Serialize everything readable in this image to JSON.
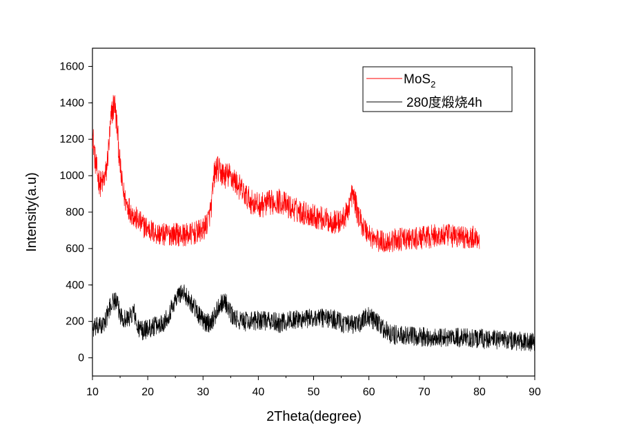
{
  "chart_data": {
    "type": "line",
    "xlabel": "2Theta(degree)",
    "ylabel": "Intensity(a.u)",
    "xlim": [
      10,
      90
    ],
    "ylim": [
      -100,
      1700
    ],
    "x_ticks": [
      10,
      20,
      30,
      40,
      50,
      60,
      70,
      80,
      90
    ],
    "y_ticks": [
      0,
      200,
      400,
      600,
      800,
      1000,
      1200,
      1400,
      1600
    ],
    "grid": false,
    "legend_position": "top-right",
    "series": [
      {
        "name": "MoS",
        "name_subscript": "2",
        "color": "#ff0000",
        "x": [
          10,
          10.5,
          11,
          11.5,
          12,
          12.5,
          13,
          13.5,
          14,
          14.5,
          15,
          15.5,
          16,
          17,
          18,
          19,
          20,
          21,
          22,
          23,
          24,
          25,
          26,
          27,
          28,
          29,
          30,
          31,
          31.5,
          32,
          32.5,
          33,
          34,
          35,
          36,
          37,
          38,
          39,
          40,
          41,
          42,
          43,
          44,
          45,
          46,
          47,
          48,
          49,
          50,
          51,
          52,
          53,
          54,
          55,
          56,
          56.5,
          57,
          57.5,
          58,
          59,
          60,
          61,
          62,
          63,
          64,
          65,
          66,
          67,
          68,
          69,
          70,
          71,
          72,
          73,
          74,
          75,
          76,
          77,
          78,
          79,
          80
        ],
        "y": [
          1240,
          1080,
          990,
          950,
          970,
          1020,
          1180,
          1350,
          1400,
          1250,
          1050,
          920,
          860,
          800,
          760,
          730,
          710,
          690,
          680,
          675,
          680,
          680,
          675,
          675,
          680,
          690,
          700,
          760,
          830,
          1000,
          1040,
          1020,
          1000,
          1000,
          960,
          920,
          880,
          850,
          840,
          840,
          850,
          860,
          860,
          840,
          820,
          810,
          800,
          790,
          780,
          770,
          760,
          750,
          745,
          750,
          790,
          850,
          900,
          860,
          790,
          720,
          680,
          650,
          640,
          635,
          640,
          650,
          650,
          650,
          650,
          655,
          660,
          665,
          670,
          670,
          670,
          670,
          665,
          665,
          660,
          660,
          660
        ]
      },
      {
        "name": "280度煅烧4h",
        "color": "#000000",
        "x": [
          10,
          11,
          12,
          13,
          13.5,
          14,
          14.5,
          15,
          16,
          17,
          17.5,
          18,
          19,
          20,
          21,
          22,
          23,
          24,
          25,
          26,
          27,
          28,
          29,
          30,
          31,
          32,
          33,
          34,
          35,
          36,
          37,
          38,
          39,
          40,
          42,
          44,
          46,
          48,
          50,
          52,
          54,
          56,
          58,
          59,
          60,
          61,
          62,
          63,
          64,
          66,
          68,
          70,
          72,
          74,
          76,
          78,
          80,
          82,
          84,
          86,
          88,
          90
        ],
        "y": [
          160,
          170,
          180,
          260,
          300,
          320,
          290,
          240,
          210,
          230,
          260,
          170,
          150,
          160,
          170,
          180,
          200,
          250,
          320,
          360,
          340,
          300,
          250,
          200,
          190,
          220,
          300,
          310,
          240,
          210,
          200,
          200,
          200,
          210,
          200,
          190,
          210,
          210,
          220,
          220,
          210,
          180,
          180,
          210,
          230,
          200,
          180,
          150,
          130,
          120,
          115,
          115,
          110,
          110,
          110,
          110,
          105,
          100,
          100,
          95,
          90,
          85
        ]
      }
    ]
  },
  "colors": {
    "axis": "#000000",
    "mos2": "#ff0000",
    "calcined": "#000000"
  }
}
